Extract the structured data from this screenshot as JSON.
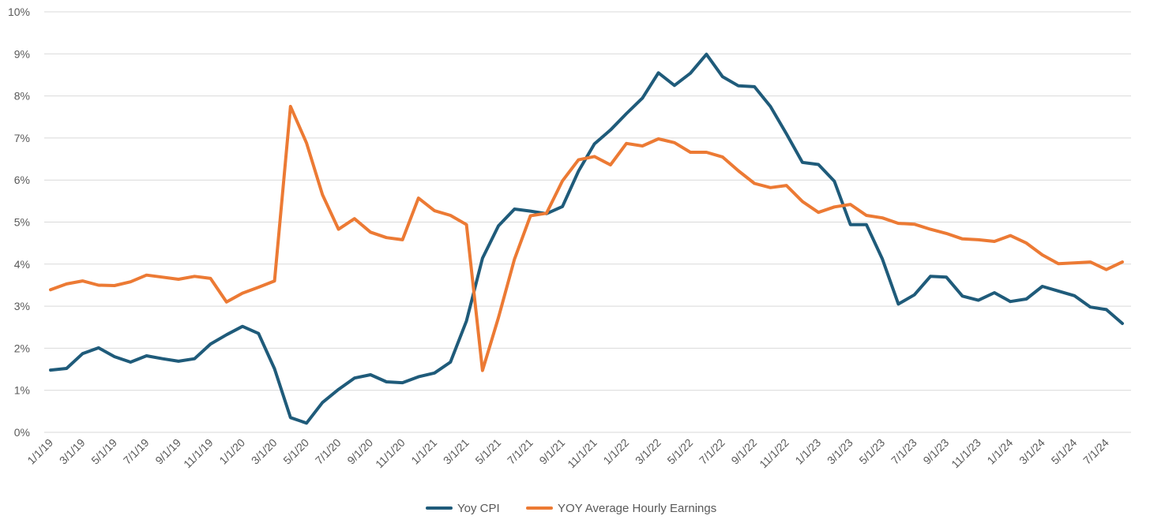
{
  "chart_data": {
    "type": "line",
    "title": "",
    "xlabel": "",
    "ylabel": "",
    "ylim": [
      0,
      10
    ],
    "yticks": [
      "0%",
      "1%",
      "2%",
      "3%",
      "4%",
      "5%",
      "6%",
      "7%",
      "8%",
      "9%",
      "10%"
    ],
    "grid": "horizontal",
    "legend_position": "bottom",
    "x": [
      "1/1/19",
      "2/1/19",
      "3/1/19",
      "4/1/19",
      "5/1/19",
      "6/1/19",
      "7/1/19",
      "8/1/19",
      "9/1/19",
      "10/1/19",
      "11/1/19",
      "12/1/19",
      "1/1/20",
      "2/1/20",
      "3/1/20",
      "4/1/20",
      "5/1/20",
      "6/1/20",
      "7/1/20",
      "8/1/20",
      "9/1/20",
      "10/1/20",
      "11/1/20",
      "12/1/20",
      "1/1/21",
      "2/1/21",
      "3/1/21",
      "4/1/21",
      "5/1/21",
      "6/1/21",
      "7/1/21",
      "8/1/21",
      "9/1/21",
      "10/1/21",
      "11/1/21",
      "12/1/21",
      "1/1/22",
      "2/1/22",
      "3/1/22",
      "4/1/22",
      "5/1/22",
      "6/1/22",
      "7/1/22",
      "8/1/22",
      "9/1/22",
      "10/1/22",
      "11/1/22",
      "12/1/22",
      "1/1/23",
      "2/1/23",
      "3/1/23",
      "4/1/23",
      "5/1/23",
      "6/1/23",
      "7/1/23",
      "8/1/23",
      "9/1/23",
      "10/1/23",
      "11/1/23",
      "12/1/23",
      "1/1/24",
      "2/1/24",
      "3/1/24",
      "4/1/24",
      "5/1/24",
      "6/1/24",
      "7/1/24",
      "8/1/24"
    ],
    "xtick_labels": [
      "1/1/19",
      "3/1/19",
      "5/1/19",
      "7/1/19",
      "9/1/19",
      "11/1/19",
      "1/1/20",
      "3/1/20",
      "5/1/20",
      "7/1/20",
      "9/1/20",
      "11/1/20",
      "1/1/21",
      "3/1/21",
      "5/1/21",
      "7/1/21",
      "9/1/21",
      "11/1/21",
      "1/1/22",
      "3/1/22",
      "5/1/22",
      "7/1/22",
      "9/1/22",
      "11/1/22",
      "1/1/23",
      "3/1/23",
      "5/1/23",
      "7/1/23",
      "9/1/23",
      "11/1/23",
      "1/1/24",
      "3/1/24",
      "5/1/24",
      "7/1/24"
    ],
    "series": [
      {
        "name": "Yoy CPI",
        "color": "#1f5b7a",
        "values": [
          1.48,
          1.52,
          1.87,
          2.01,
          1.8,
          1.67,
          1.82,
          1.75,
          1.69,
          1.75,
          2.1,
          2.32,
          2.52,
          2.35,
          1.51,
          0.35,
          0.22,
          0.71,
          1.02,
          1.29,
          1.37,
          1.2,
          1.18,
          1.32,
          1.41,
          1.67,
          2.65,
          4.14,
          4.91,
          5.31,
          5.26,
          5.2,
          5.37,
          6.21,
          6.86,
          7.19,
          7.58,
          7.95,
          8.55,
          8.25,
          8.54,
          8.99,
          8.46,
          8.24,
          8.22,
          7.75,
          7.1,
          6.42,
          6.37,
          5.97,
          4.94,
          4.94,
          4.12,
          3.05,
          3.27,
          3.71,
          3.69,
          3.24,
          3.14,
          3.32,
          3.11,
          3.17,
          3.47,
          3.36,
          3.25,
          2.98,
          2.92,
          2.59
        ]
      },
      {
        "name": "YOY Average Hourly Earnings",
        "color": "#ec7a34",
        "values": [
          3.39,
          3.53,
          3.6,
          3.5,
          3.49,
          3.58,
          3.74,
          3.69,
          3.64,
          3.71,
          3.66,
          3.1,
          3.31,
          3.45,
          3.6,
          7.75,
          6.88,
          5.65,
          4.83,
          5.08,
          4.76,
          4.63,
          4.58,
          5.57,
          5.27,
          5.16,
          4.94,
          1.47,
          2.73,
          4.12,
          5.15,
          5.21,
          5.98,
          6.48,
          6.56,
          6.36,
          6.87,
          6.81,
          6.98,
          6.89,
          6.66,
          6.66,
          6.55,
          6.22,
          5.92,
          5.82,
          5.87,
          5.49,
          5.23,
          5.36,
          5.42,
          5.16,
          5.1,
          4.97,
          4.95,
          4.83,
          4.73,
          4.6,
          4.58,
          4.54,
          4.68,
          4.5,
          4.22,
          4.01,
          4.03,
          4.05,
          3.87,
          4.05
        ]
      }
    ]
  }
}
